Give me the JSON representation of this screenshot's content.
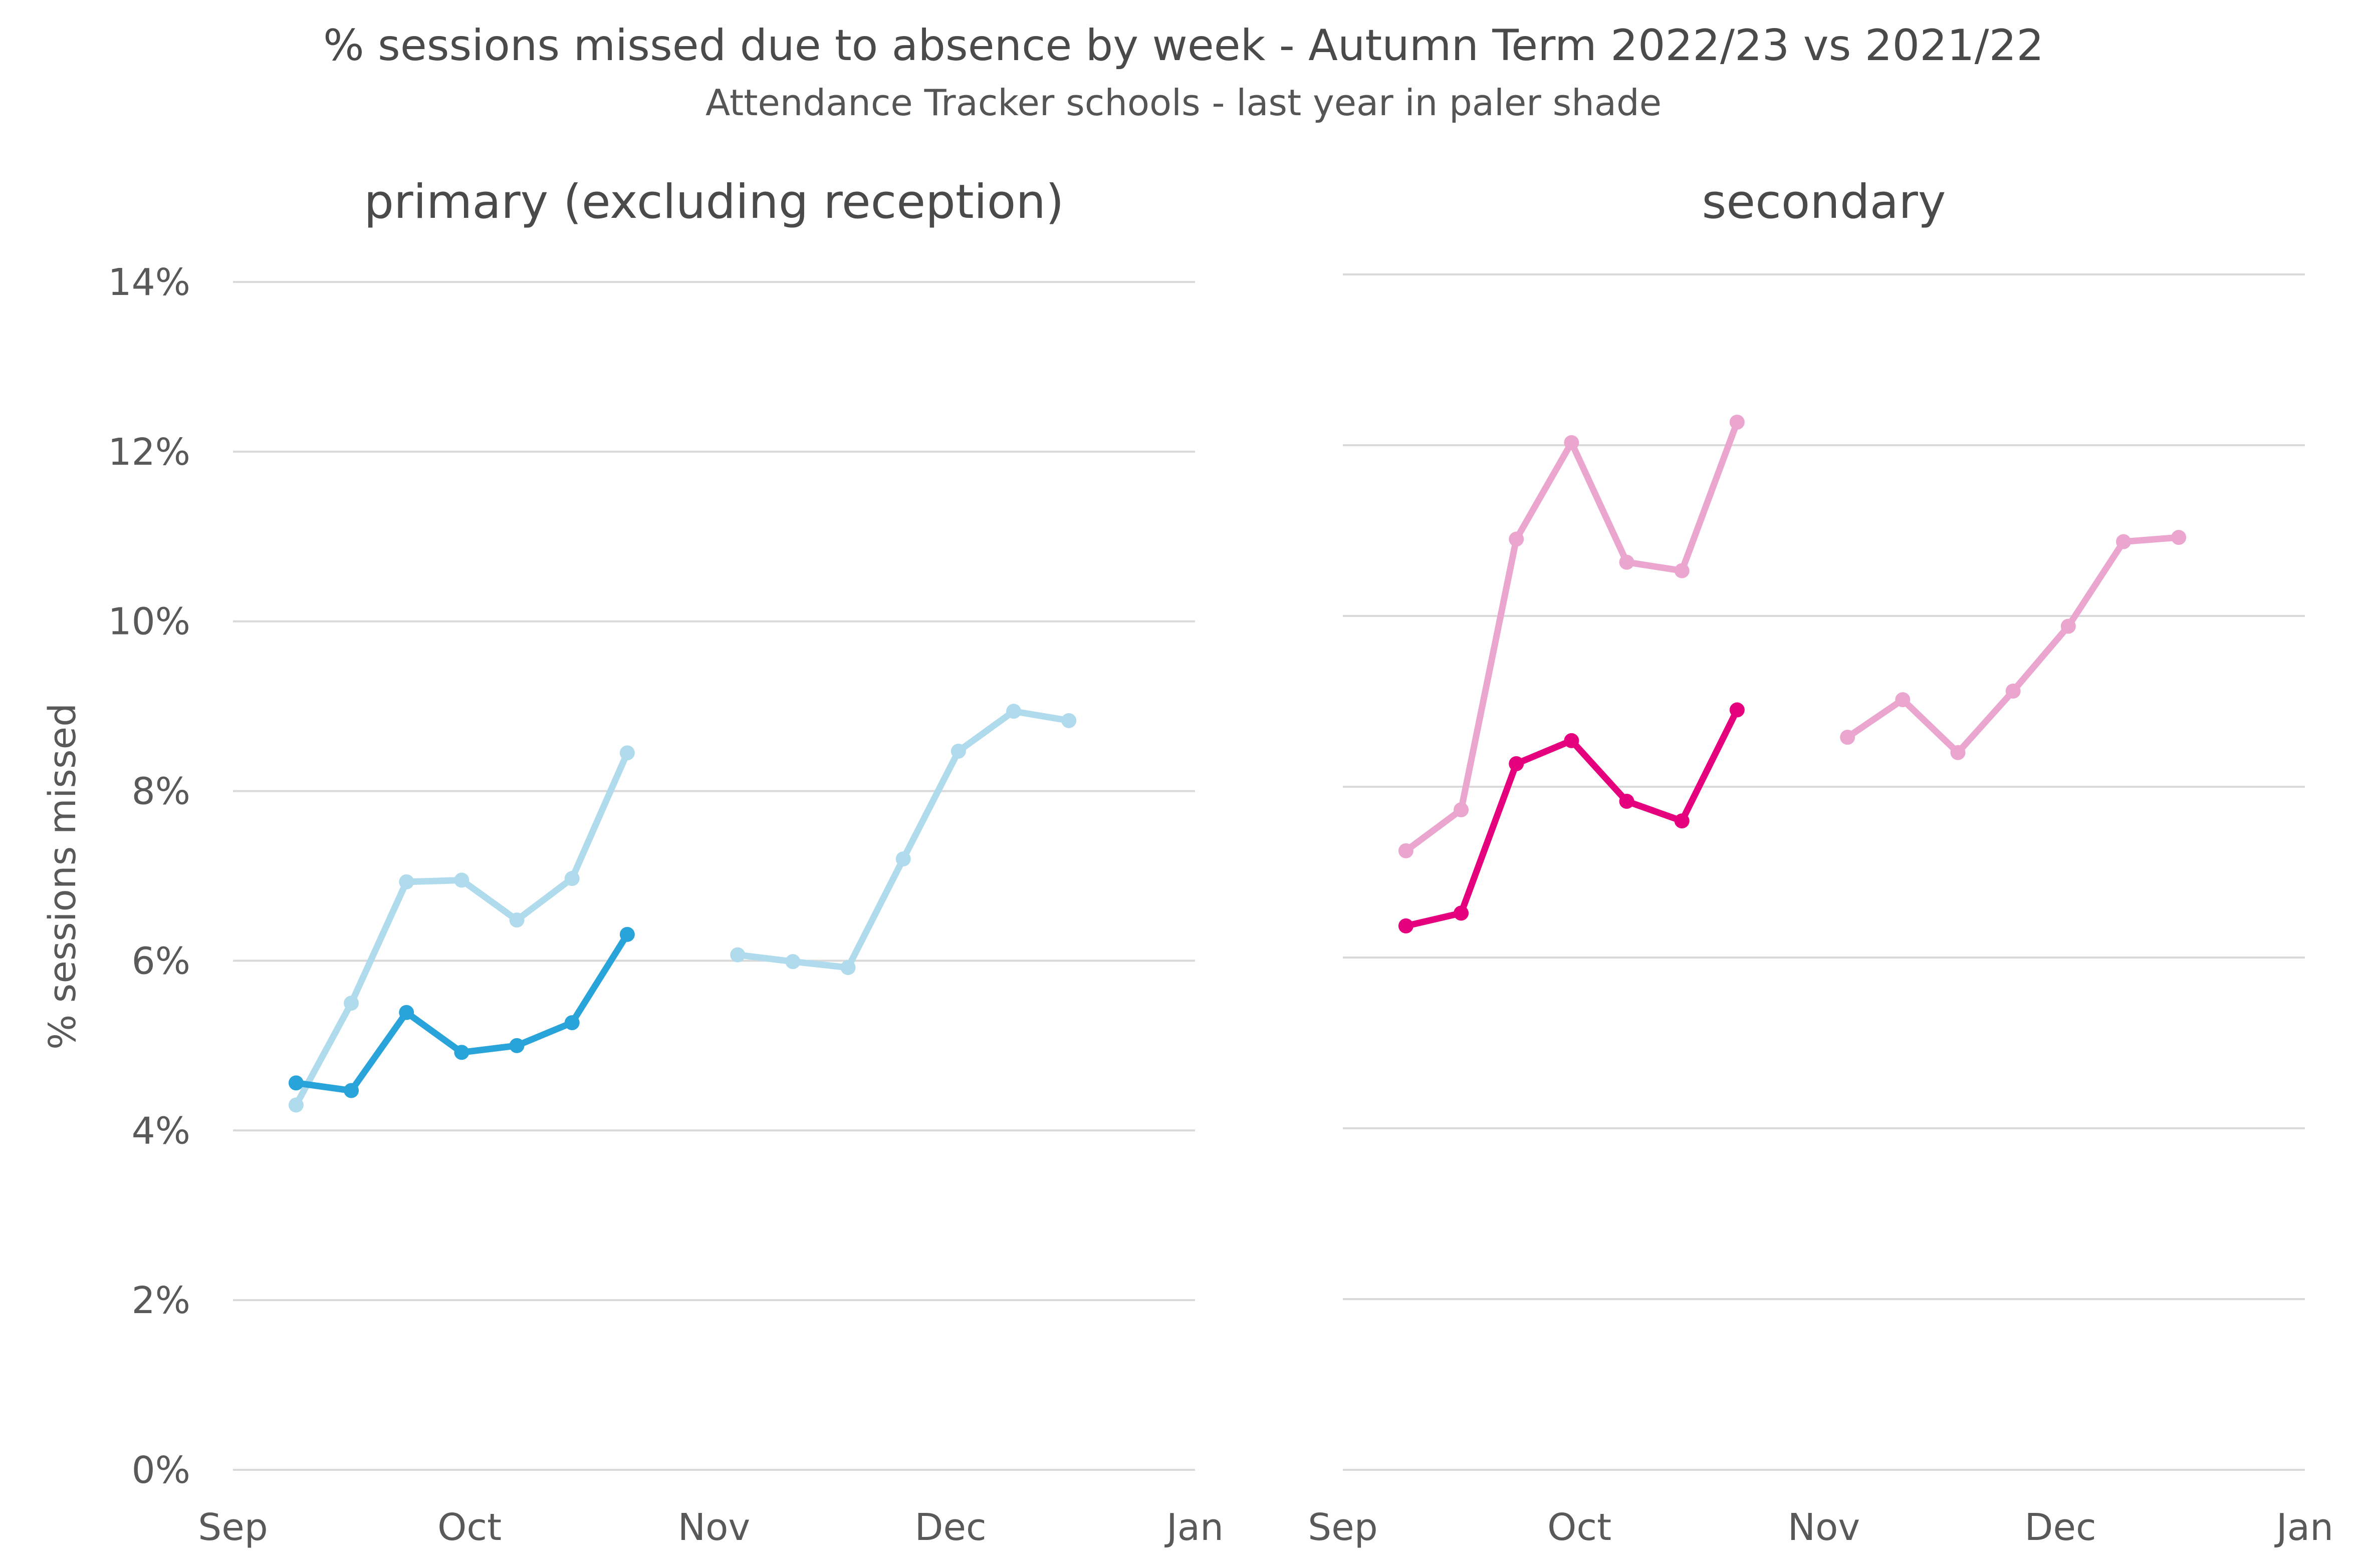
{
  "chart_data": {
    "type": "line",
    "title": "% sessions missed due to absence by week - Autumn Term 2022/23 vs 2021/22",
    "subtitle": "Attendance Tracker schools - last year in paler shade",
    "ylabel": "% sessions missed",
    "ylim": [
      0,
      14
    ],
    "yticks": [
      "0%",
      "2%",
      "4%",
      "6%",
      "8%",
      "10%",
      "12%",
      "14%"
    ],
    "xlim": [
      "2022-09-01",
      "2023-01-01"
    ],
    "xticks": [
      {
        "date": "2022-09-01",
        "label": "Sep"
      },
      {
        "date": "2022-10-01",
        "label": "Oct"
      },
      {
        "date": "2022-11-01",
        "label": "Nov"
      },
      {
        "date": "2022-12-01",
        "label": "Dec"
      },
      {
        "date": "2023-01-01",
        "label": "Jan"
      }
    ],
    "grid": true,
    "panels": [
      {
        "title": "primary (excluding reception)",
        "series": [
          {
            "color": "#afdbec",
            "segments": [
              [
                {
                  "x": "2022-09-09",
                  "y": 4.3
                },
                {
                  "x": "2022-09-16",
                  "y": 5.5
                },
                {
                  "x": "2022-09-23",
                  "y": 6.93
                },
                {
                  "x": "2022-09-30",
                  "y": 6.95
                },
                {
                  "x": "2022-10-07",
                  "y": 6.48
                },
                {
                  "x": "2022-10-14",
                  "y": 6.97
                },
                {
                  "x": "2022-10-21",
                  "y": 8.45
                }
              ],
              [
                {
                  "x": "2022-11-04",
                  "y": 6.07
                },
                {
                  "x": "2022-11-11",
                  "y": 5.99
                },
                {
                  "x": "2022-11-18",
                  "y": 5.92
                },
                {
                  "x": "2022-11-25",
                  "y": 7.2
                },
                {
                  "x": "2022-12-02",
                  "y": 8.47
                },
                {
                  "x": "2022-12-09",
                  "y": 8.94
                },
                {
                  "x": "2022-12-16",
                  "y": 8.83
                }
              ]
            ]
          },
          {
            "color": "#29a4da",
            "segments": [
              [
                {
                  "x": "2022-09-09",
                  "y": 4.56
                },
                {
                  "x": "2022-09-16",
                  "y": 4.47
                },
                {
                  "x": "2022-09-23",
                  "y": 5.39
                },
                {
                  "x": "2022-09-30",
                  "y": 4.92
                },
                {
                  "x": "2022-10-07",
                  "y": 5.0
                },
                {
                  "x": "2022-10-14",
                  "y": 5.27
                },
                {
                  "x": "2022-10-21",
                  "y": 6.31
                }
              ]
            ]
          }
        ]
      },
      {
        "title": "secondary",
        "series": [
          {
            "color": "#eba6d0",
            "segments": [
              [
                {
                  "x": "2022-09-09",
                  "y": 7.25
                },
                {
                  "x": "2022-09-16",
                  "y": 7.73
                },
                {
                  "x": "2022-09-23",
                  "y": 10.9
                },
                {
                  "x": "2022-09-30",
                  "y": 12.03
                },
                {
                  "x": "2022-10-07",
                  "y": 10.63
                },
                {
                  "x": "2022-10-14",
                  "y": 10.53
                },
                {
                  "x": "2022-10-21",
                  "y": 12.27
                }
              ],
              [
                {
                  "x": "2022-11-04",
                  "y": 8.58
                },
                {
                  "x": "2022-11-11",
                  "y": 9.02
                },
                {
                  "x": "2022-11-18",
                  "y": 8.4
                },
                {
                  "x": "2022-11-25",
                  "y": 9.12
                },
                {
                  "x": "2022-12-02",
                  "y": 9.88
                },
                {
                  "x": "2022-12-09",
                  "y": 10.87
                },
                {
                  "x": "2022-12-16",
                  "y": 10.92
                }
              ]
            ]
          },
          {
            "color": "#e5007e",
            "segments": [
              [
                {
                  "x": "2022-09-09",
                  "y": 6.37
                },
                {
                  "x": "2022-09-16",
                  "y": 6.52
                },
                {
                  "x": "2022-09-23",
                  "y": 8.27
                },
                {
                  "x": "2022-09-30",
                  "y": 8.54
                },
                {
                  "x": "2022-10-07",
                  "y": 7.83
                },
                {
                  "x": "2022-10-14",
                  "y": 7.6
                },
                {
                  "x": "2022-10-21",
                  "y": 8.9
                }
              ]
            ]
          }
        ]
      }
    ]
  }
}
